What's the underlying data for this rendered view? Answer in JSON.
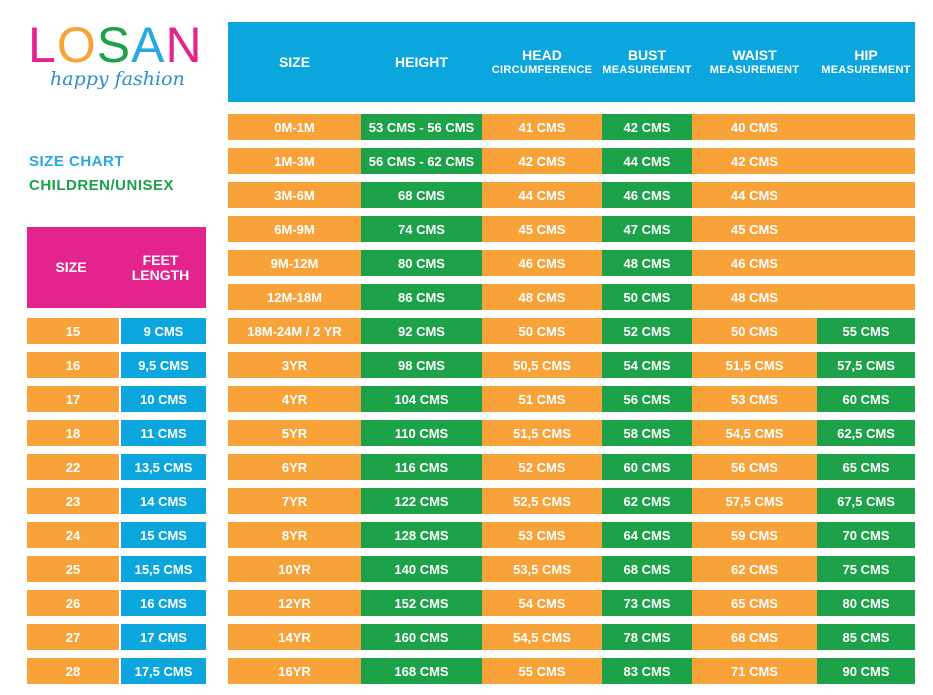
{
  "brand": {
    "name": "LOSAN",
    "tagline": "happy fashion"
  },
  "letters": [
    {
      "ch": "L",
      "color": "#e5238f"
    },
    {
      "ch": "O",
      "color": "#f8a23a"
    },
    {
      "ch": "S",
      "color": "#1da24a"
    },
    {
      "ch": "A",
      "color": "#29a8e0"
    },
    {
      "ch": "N",
      "color": "#e5238f"
    }
  ],
  "title_line1": "SIZE CHART",
  "title_line2": "CHILDREN/UNISEX",
  "feet_table": {
    "headers": {
      "size": "SIZE",
      "feet_length_1": "FEET",
      "feet_length_2": "LENGTH"
    },
    "rows": [
      {
        "size": "15",
        "length": "9 CMS"
      },
      {
        "size": "16",
        "length": "9,5 CMS"
      },
      {
        "size": "17",
        "length": "10 CMS"
      },
      {
        "size": "18",
        "length": "11 CMS"
      },
      {
        "size": "22",
        "length": "13,5 CMS"
      },
      {
        "size": "23",
        "length": "14 CMS"
      },
      {
        "size": "24",
        "length": "15 CMS"
      },
      {
        "size": "25",
        "length": "15,5 CMS"
      },
      {
        "size": "26",
        "length": "16 CMS"
      },
      {
        "size": "27",
        "length": "17 CMS"
      },
      {
        "size": "28",
        "length": "17,5 CMS"
      }
    ]
  },
  "main_table": {
    "headers": [
      {
        "l1": "SIZE",
        "l2": ""
      },
      {
        "l1": "HEIGHT",
        "l2": ""
      },
      {
        "l1": "HEAD",
        "l2": "CIRCUMFERENCE"
      },
      {
        "l1": "BUST",
        "l2": "MEASUREMENT"
      },
      {
        "l1": "WAIST",
        "l2": "MEASUREMENT"
      },
      {
        "l1": "HIP",
        "l2": "MEASUREMENT"
      }
    ],
    "rows": [
      {
        "size": "0M-1M",
        "height": "53 CMS - 56 CMS",
        "head": "41 CMS",
        "bust": "42 CMS",
        "waist": "40 CMS",
        "hip": ""
      },
      {
        "size": "1M-3M",
        "height": "56 CMS - 62 CMS",
        "head": "42 CMS",
        "bust": "44 CMS",
        "waist": "42 CMS",
        "hip": ""
      },
      {
        "size": "3M-6M",
        "height": "68 CMS",
        "head": "44 CMS",
        "bust": "46 CMS",
        "waist": "44 CMS",
        "hip": ""
      },
      {
        "size": "6M-9M",
        "height": "74 CMS",
        "head": "45 CMS",
        "bust": "47 CMS",
        "waist": "45 CMS",
        "hip": ""
      },
      {
        "size": "9M-12M",
        "height": "80 CMS",
        "head": "46 CMS",
        "bust": "48 CMS",
        "waist": "46 CMS",
        "hip": ""
      },
      {
        "size": "12M-18M",
        "height": "86 CMS",
        "head": "48 CMS",
        "bust": "50 CMS",
        "waist": "48 CMS",
        "hip": ""
      },
      {
        "size": "18M-24M / 2 YR",
        "height": "92 CMS",
        "head": "50 CMS",
        "bust": "52 CMS",
        "waist": "50 CMS",
        "hip": "55 CMS"
      },
      {
        "size": "3YR",
        "height": "98 CMS",
        "head": "50,5 CMS",
        "bust": "54 CMS",
        "waist": "51,5 CMS",
        "hip": "57,5 CMS"
      },
      {
        "size": "4YR",
        "height": "104 CMS",
        "head": "51 CMS",
        "bust": "56 CMS",
        "waist": "53 CMS",
        "hip": "60 CMS"
      },
      {
        "size": "5YR",
        "height": "110 CMS",
        "head": "51,5 CMS",
        "bust": "58 CMS",
        "waist": "54,5 CMS",
        "hip": "62,5 CMS"
      },
      {
        "size": "6YR",
        "height": "116 CMS",
        "head": "52 CMS",
        "bust": "60 CMS",
        "waist": "56 CMS",
        "hip": "65 CMS"
      },
      {
        "size": "7YR",
        "height": "122 CMS",
        "head": "52,5 CMS",
        "bust": "62 CMS",
        "waist": "57,5 CMS",
        "hip": "67,5 CMS"
      },
      {
        "size": "8YR",
        "height": "128 CMS",
        "head": "53 CMS",
        "bust": "64 CMS",
        "waist": "59 CMS",
        "hip": "70 CMS"
      },
      {
        "size": "10YR",
        "height": "140 CMS",
        "head": "53,5 CMS",
        "bust": "68 CMS",
        "waist": "62 CMS",
        "hip": "75 CMS"
      },
      {
        "size": "12YR",
        "height": "152 CMS",
        "head": "54 CMS",
        "bust": "73 CMS",
        "waist": "65 CMS",
        "hip": "80 CMS"
      },
      {
        "size": "14YR",
        "height": "160 CMS",
        "head": "54,5 CMS",
        "bust": "78 CMS",
        "waist": "68 CMS",
        "hip": "85 CMS"
      },
      {
        "size": "16YR",
        "height": "168 CMS",
        "head": "55 CMS",
        "bust": "83 CMS",
        "waist": "71 CMS",
        "hip": "90 CMS"
      }
    ]
  },
  "colors": {
    "orange": "#f8a23a",
    "green": "#1da24a",
    "blue": "#0ba6de",
    "pink": "#e5238f"
  }
}
